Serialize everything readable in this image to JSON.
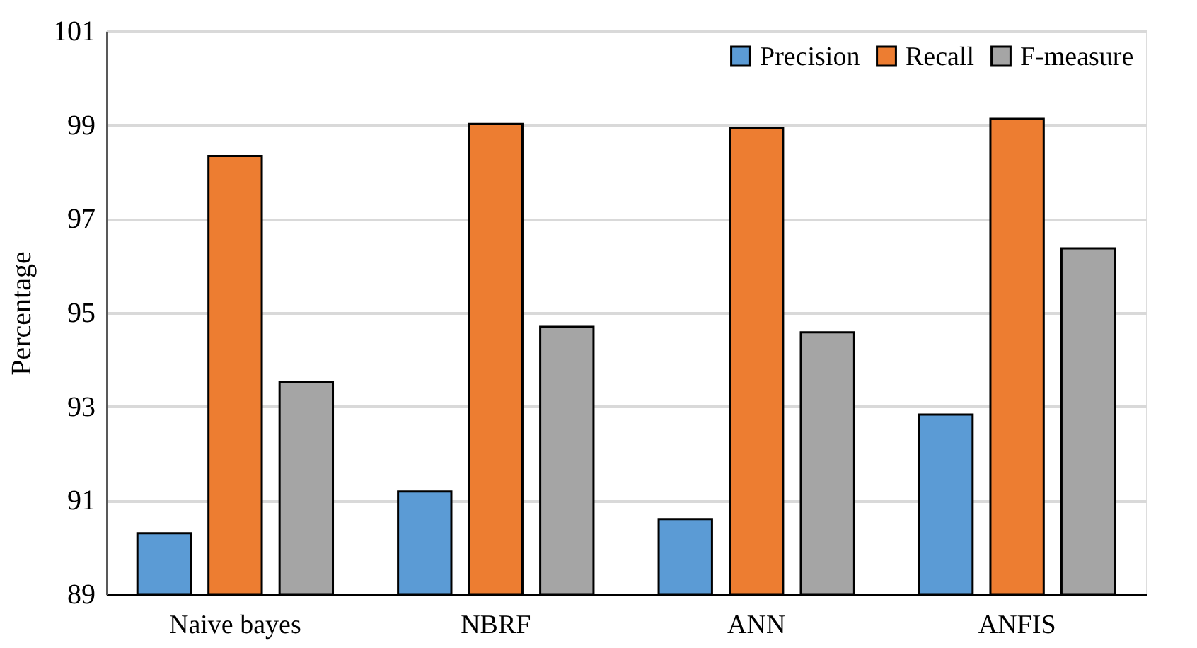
{
  "chart_data": {
    "type": "bar",
    "ylabel": "Percentage",
    "categories": [
      "Naive bayes",
      "NBRF",
      "ANN",
      "ANFIS"
    ],
    "series": [
      {
        "name": "Precision",
        "color": "#5b9bd5",
        "values": [
          90.3,
          91.19,
          90.6,
          92.83
        ]
      },
      {
        "name": "Recall",
        "color": "#ed7d31",
        "values": [
          98.34,
          99.02,
          98.93,
          99.13
        ]
      },
      {
        "name": "F-measure",
        "color": "#a5a5a5",
        "values": [
          93.52,
          94.7,
          94.58,
          96.37
        ]
      }
    ],
    "ylim": [
      89,
      101
    ],
    "yticks": [
      89,
      91,
      93,
      95,
      97,
      99,
      101
    ],
    "grid": "y",
    "legend": "top right"
  }
}
